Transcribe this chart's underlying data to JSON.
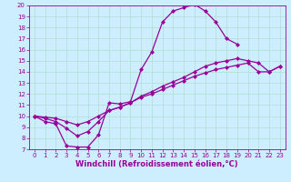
{
  "xlabel": "Windchill (Refroidissement éolien,°C)",
  "bg_color": "#cceeff",
  "grid_color": "#b0ddd0",
  "line_color": "#990099",
  "xlim": [
    -0.5,
    23.5
  ],
  "ylim": [
    7,
    20
  ],
  "xticks": [
    0,
    1,
    2,
    3,
    4,
    5,
    6,
    7,
    8,
    9,
    10,
    11,
    12,
    13,
    14,
    15,
    16,
    17,
    18,
    19,
    20,
    21,
    22,
    23
  ],
  "yticks": [
    7,
    8,
    9,
    10,
    11,
    12,
    13,
    14,
    15,
    16,
    17,
    18,
    19,
    20
  ],
  "curve1_x": [
    0,
    1,
    2,
    3,
    4,
    5,
    6,
    7,
    8,
    9,
    10,
    11,
    12,
    13,
    14,
    15,
    16,
    17,
    18,
    19
  ],
  "curve1_y": [
    10.0,
    9.5,
    9.3,
    7.3,
    7.2,
    7.2,
    8.3,
    11.2,
    11.1,
    11.3,
    14.2,
    15.8,
    18.5,
    19.5,
    19.8,
    20.1,
    19.5,
    18.5,
    17.0,
    16.5
  ],
  "curve2_x": [
    0,
    1,
    2,
    3,
    4,
    5,
    6,
    7,
    8,
    9,
    10,
    11,
    12,
    13,
    14,
    15,
    16,
    17,
    18,
    19,
    20,
    21,
    22,
    23
  ],
  "curve2_y": [
    10.0,
    9.8,
    9.5,
    8.9,
    8.2,
    8.6,
    9.5,
    10.5,
    10.8,
    11.2,
    11.8,
    12.2,
    12.7,
    13.1,
    13.5,
    14.0,
    14.5,
    14.8,
    15.0,
    15.2,
    15.0,
    14.8,
    14.0,
    14.5
  ],
  "curve3_x": [
    0,
    1,
    2,
    3,
    4,
    5,
    6,
    7,
    8,
    9,
    10,
    11,
    12,
    13,
    14,
    15,
    16,
    17,
    18,
    19,
    20,
    21,
    22,
    23
  ],
  "curve3_y": [
    10.0,
    9.9,
    9.8,
    9.5,
    9.2,
    9.5,
    10.0,
    10.5,
    10.8,
    11.2,
    11.7,
    12.0,
    12.4,
    12.8,
    13.2,
    13.6,
    13.9,
    14.2,
    14.4,
    14.6,
    14.8,
    14.0,
    14.0,
    14.5
  ],
  "marker_style": "D",
  "marker_size": 2,
  "linewidth": 0.9,
  "xlabel_fontsize": 6,
  "tick_fontsize": 5
}
